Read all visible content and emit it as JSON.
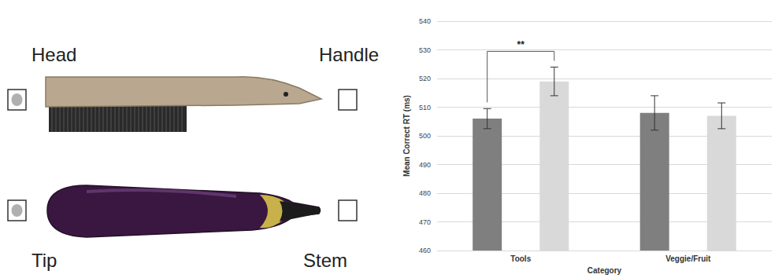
{
  "chart_data": {
    "type": "bar",
    "y_label": "Mean Correct RT (ms)",
    "x_label": "Category",
    "categories": [
      "Tools",
      "Veggie/Fruit"
    ],
    "series": [
      {
        "color": "#7f7f7f",
        "values": [
          506,
          508
        ],
        "errors": [
          3.5,
          6
        ]
      },
      {
        "color": "#d9d9d9",
        "values": [
          519,
          507
        ],
        "errors": [
          5,
          4.5
        ]
      }
    ],
    "ylim": [
      460,
      540
    ],
    "yticks": [
      460,
      470,
      480,
      490,
      500,
      510,
      520,
      530,
      540
    ],
    "grid": true,
    "annotations": [
      {
        "text": "**",
        "category": "Tools"
      }
    ]
  },
  "panel": {
    "labels": {
      "head": "Head",
      "handle": "Handle",
      "tip": "Tip",
      "stem": "Stem"
    }
  }
}
